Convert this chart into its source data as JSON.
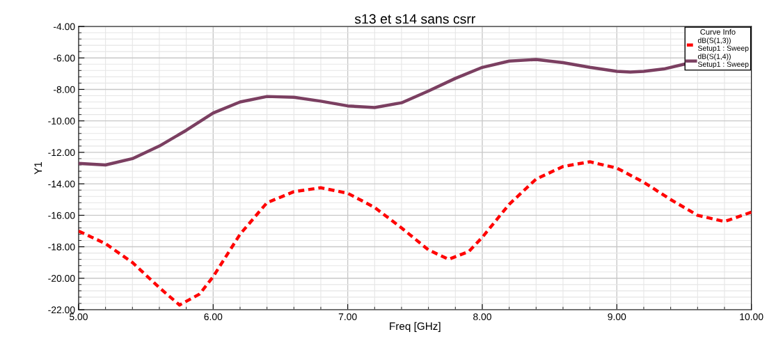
{
  "chart_data": {
    "type": "line",
    "title": "s13 et s14 sans csrr",
    "xlabel": "Freq [GHz]",
    "ylabel": "Y1",
    "legend_title": "Curve Info",
    "xlim": [
      5,
      10
    ],
    "ylim": [
      -22,
      -4
    ],
    "xticks": [
      {
        "value": 5,
        "label": "5.00"
      },
      {
        "value": 6,
        "label": "6.00"
      },
      {
        "value": 7,
        "label": "7.00"
      },
      {
        "value": 8,
        "label": "8.00"
      },
      {
        "value": 9,
        "label": "9.00"
      },
      {
        "value": 10,
        "label": "10.00"
      }
    ],
    "yticks": [
      {
        "value": -22,
        "label": "-22.00"
      },
      {
        "value": -20,
        "label": "-20.00"
      },
      {
        "value": -18,
        "label": "-18.00"
      },
      {
        "value": -16,
        "label": "-16.00"
      },
      {
        "value": -14,
        "label": "-14.00"
      },
      {
        "value": -12,
        "label": "-12.00"
      },
      {
        "value": -10,
        "label": "-10.00"
      },
      {
        "value": -8,
        "label": "-8.00"
      },
      {
        "value": -6,
        "label": "-6.00"
      },
      {
        "value": -4,
        "label": "-4.00"
      }
    ],
    "grid": true,
    "legend": "top right",
    "marker": "none",
    "series": [
      {
        "name": "dB(S(1,3))\nSetup1 : Sweep",
        "color": "#ff0000",
        "line_style": "dashed",
        "x": [
          5.0,
          5.2,
          5.4,
          5.6,
          5.75,
          5.9,
          6.0,
          6.2,
          6.4,
          6.6,
          6.8,
          7.0,
          7.2,
          7.4,
          7.6,
          7.75,
          7.9,
          8.0,
          8.2,
          8.4,
          8.6,
          8.8,
          9.0,
          9.2,
          9.4,
          9.6,
          9.8,
          10.0
        ],
        "values": [
          -17.0,
          -17.8,
          -19.0,
          -20.6,
          -21.7,
          -21.0,
          -19.9,
          -17.2,
          -15.2,
          -14.5,
          -14.25,
          -14.6,
          -15.5,
          -16.8,
          -18.2,
          -18.8,
          -18.3,
          -17.4,
          -15.3,
          -13.7,
          -12.9,
          -12.6,
          -13.0,
          -13.9,
          -15.0,
          -16.0,
          -16.4,
          -15.8
        ]
      },
      {
        "name": "dB(S(1,4))\nSetup1 : Sweep",
        "color": "#7b3f61",
        "line_style": "solid",
        "x": [
          5.0,
          5.2,
          5.4,
          5.6,
          5.8,
          6.0,
          6.2,
          6.4,
          6.6,
          6.8,
          7.0,
          7.2,
          7.4,
          7.6,
          7.8,
          8.0,
          8.2,
          8.4,
          8.6,
          8.8,
          9.0,
          9.1,
          9.2,
          9.35,
          9.5
        ],
        "values": [
          -12.7,
          -12.8,
          -12.4,
          -11.6,
          -10.6,
          -9.5,
          -8.8,
          -8.45,
          -8.5,
          -8.75,
          -9.05,
          -9.15,
          -8.85,
          -8.1,
          -7.3,
          -6.6,
          -6.2,
          -6.1,
          -6.3,
          -6.6,
          -6.85,
          -6.9,
          -6.85,
          -6.7,
          -6.4
        ]
      }
    ]
  }
}
